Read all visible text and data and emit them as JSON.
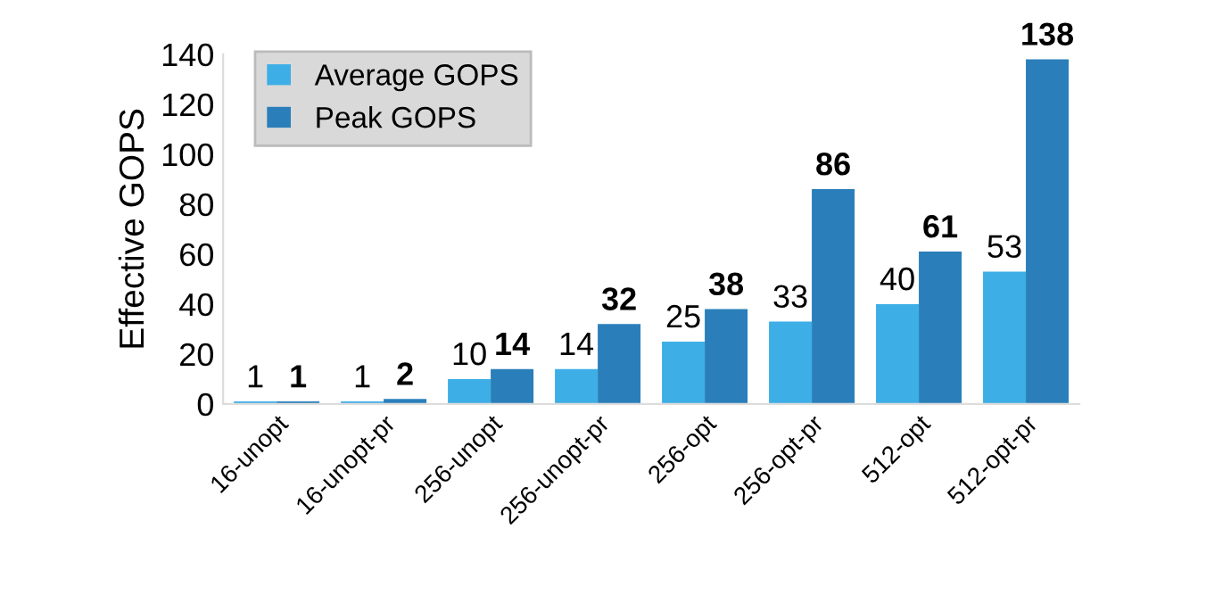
{
  "chart_data": {
    "type": "bar",
    "ylabel": "Effective GOPS",
    "categories": [
      "16-unopt",
      "16-unopt-pr",
      "256-unopt",
      "256-unopt-pr",
      "256-opt",
      "256-opt-pr",
      "512-opt",
      "512-opt-pr"
    ],
    "series": [
      {
        "name": "Average GOPS",
        "color": "#3daee6",
        "values": [
          1,
          1,
          10,
          14,
          25,
          33,
          40,
          53
        ]
      },
      {
        "name": "Peak GOPS",
        "color": "#2a7fba",
        "values": [
          1,
          2,
          14,
          32,
          38,
          86,
          61,
          138
        ]
      }
    ],
    "ylim": [
      0,
      140
    ],
    "yticks": [
      0,
      20,
      40,
      60,
      80,
      100,
      120,
      140
    ],
    "data_labels": true,
    "legend": "top left",
    "grid": false
  }
}
